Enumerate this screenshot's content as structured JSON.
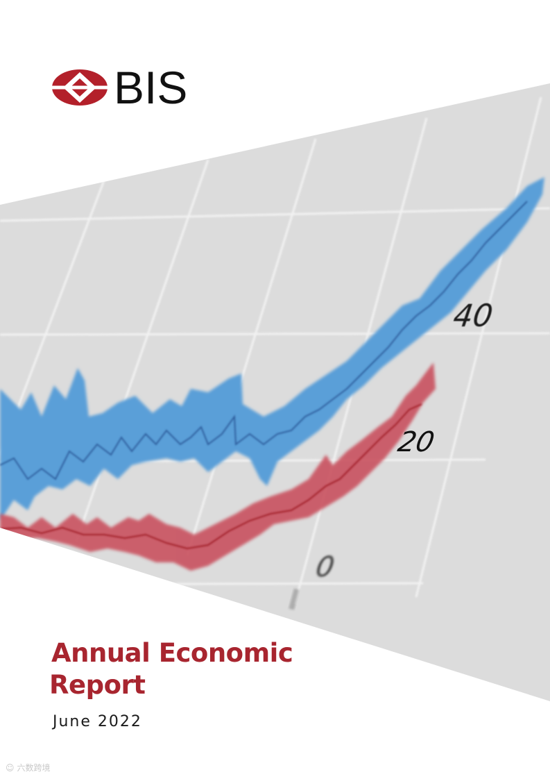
{
  "header": {
    "logo_text": "BIS",
    "logo_color": "#b3202a"
  },
  "cover_chart": {
    "tick_labels": [
      "40",
      "20",
      "0"
    ],
    "series_colors": {
      "upper_band": "#5a9fd8",
      "upper_line": "#2f5f9e",
      "lower_band": "#c9515f",
      "lower_line": "#a3202c"
    },
    "panel_color": "#dcdcdc"
  },
  "title": {
    "line1": "Annual Economic",
    "line2": "Report"
  },
  "date": "June 2022",
  "watermark": {
    "icon": "smile-icon",
    "text": "六数跨境"
  },
  "colors": {
    "title": "#a8252f",
    "text": "#1a1a1a"
  }
}
